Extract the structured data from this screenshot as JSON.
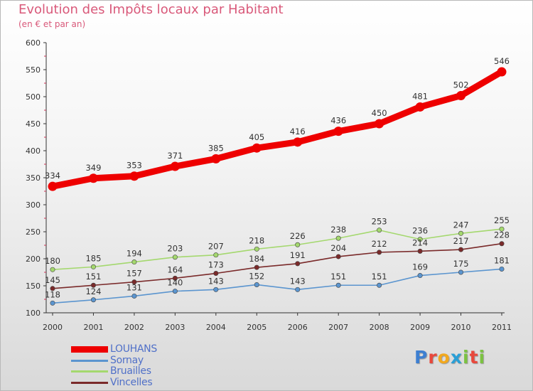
{
  "header": {
    "title": "Evolution des Impôts locaux par Habitant",
    "subtitle": "(en € et par an)"
  },
  "logo": {
    "text": "Proxiti",
    "colors": [
      "#3d7fd1",
      "#e8483c",
      "#f2a81d",
      "#2a9fd6",
      "#7cc242",
      "#e8483c",
      "#7cc242"
    ]
  },
  "chart_data": {
    "type": "line",
    "title": "Evolution des Impôts locaux par Habitant",
    "subtitle": "(en € et par an)",
    "xlabel": "",
    "ylabel": "",
    "x": [
      "2000",
      "2001",
      "2002",
      "2003",
      "2004",
      "2005",
      "2006",
      "2007",
      "2008",
      "2009",
      "2010",
      "2011"
    ],
    "ylim": [
      100,
      600
    ],
    "yticks": [
      "100",
      "150",
      "200",
      "250",
      "300",
      "350",
      "400",
      "450",
      "500",
      "550",
      "600"
    ],
    "grid": false,
    "legend_position": "bottom-left",
    "series": [
      {
        "name": "LOUHANS",
        "color": "#ee0000",
        "values": [
          334,
          349,
          353,
          371,
          385,
          405,
          416,
          436,
          450,
          481,
          502,
          546
        ],
        "labels": [
          "334",
          "349",
          "353",
          "371",
          "385",
          "405",
          "416",
          "436",
          "450",
          "481",
          "502",
          "546"
        ]
      },
      {
        "name": "Sornay",
        "color": "#5b95cf",
        "values": [
          118,
          124,
          131,
          140,
          143,
          152,
          143,
          151,
          151,
          169,
          175,
          181
        ],
        "labels": [
          "118",
          "124",
          "131",
          "140",
          "143",
          "152",
          "143",
          "151",
          "151",
          "169",
          "175",
          "181"
        ]
      },
      {
        "name": "Bruailles",
        "color": "#a4d86e",
        "values": [
          180,
          185,
          194,
          203,
          207,
          218,
          226,
          238,
          253,
          236,
          247,
          255
        ],
        "labels": [
          "180",
          "185",
          "194",
          "203",
          "207",
          "218",
          "226",
          "238",
          "253",
          "236",
          "247",
          "255"
        ]
      },
      {
        "name": "Vincelles",
        "color": "#7a2a2a",
        "values": [
          145,
          151,
          157,
          164,
          173,
          184,
          191,
          204,
          212,
          214,
          217,
          228
        ],
        "labels": [
          "145",
          "151",
          "157",
          "164",
          "173",
          "184",
          "191",
          "204",
          "212",
          "214",
          "217",
          "228"
        ]
      }
    ]
  }
}
